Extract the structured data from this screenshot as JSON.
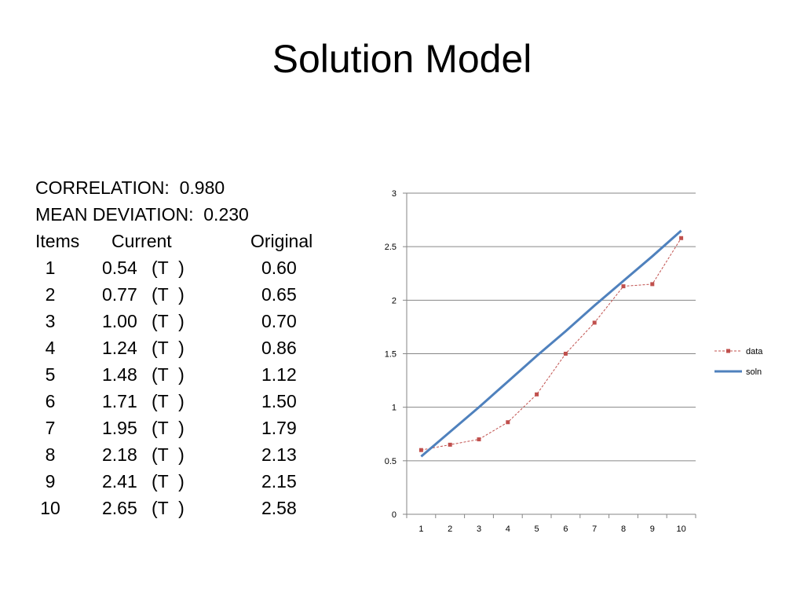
{
  "title": "Solution Model",
  "stats": [
    "CORRELATION:  0.980",
    "MEAN DEVIATION:  0.230"
  ],
  "table": {
    "header": [
      "Items",
      "Current",
      "Original"
    ],
    "rows": [
      [
        "1",
        "0.54",
        "(T  )",
        "0.60"
      ],
      [
        "2",
        "0.77",
        "(T  )",
        "0.65"
      ],
      [
        "3",
        "1.00",
        "(T  )",
        "0.70"
      ],
      [
        "4",
        "1.24",
        "(T  )",
        "0.86"
      ],
      [
        "5",
        "1.48",
        "(T  )",
        "1.12"
      ],
      [
        "6",
        "1.71",
        "(T  )",
        "1.50"
      ],
      [
        "7",
        "1.95",
        "(T  )",
        "1.79"
      ],
      [
        "8",
        "2.18",
        "(T  )",
        "2.13"
      ],
      [
        "9",
        "2.41",
        "(T  )",
        "2.15"
      ],
      [
        "10",
        "2.65",
        "(T  )",
        "2.58"
      ]
    ]
  },
  "chart_data": {
    "type": "line",
    "categories": [
      1,
      2,
      3,
      4,
      5,
      6,
      7,
      8,
      9,
      10
    ],
    "series": [
      {
        "name": "data",
        "color": "#c0504d",
        "dashed": true,
        "marker": "square",
        "values": [
          0.6,
          0.65,
          0.7,
          0.86,
          1.12,
          1.5,
          1.79,
          2.13,
          2.15,
          2.58
        ]
      },
      {
        "name": "soln",
        "color": "#4f81bd",
        "dashed": false,
        "marker": "none",
        "values": [
          0.54,
          0.77,
          1.0,
          1.24,
          1.48,
          1.71,
          1.95,
          2.18,
          2.41,
          2.65
        ]
      }
    ],
    "ylim": [
      0,
      3
    ],
    "yticks": [
      0,
      0.5,
      1,
      1.5,
      2,
      2.5,
      3
    ],
    "grid": true,
    "legend": "right"
  }
}
